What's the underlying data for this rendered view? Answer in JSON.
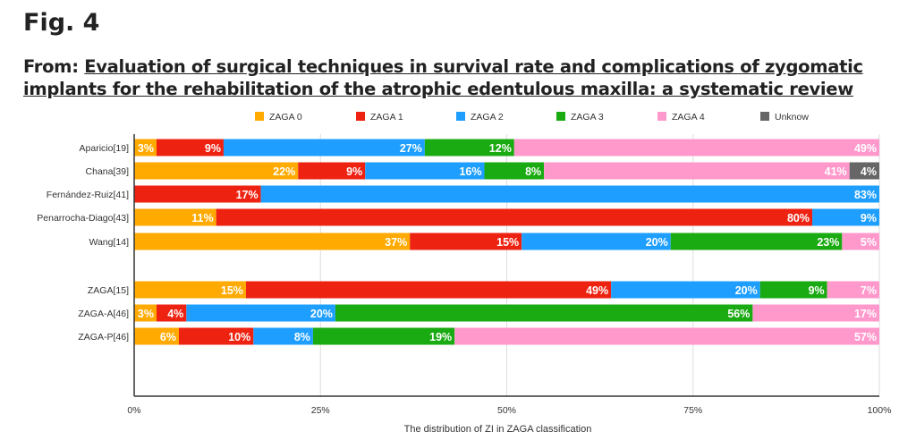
{
  "header": {
    "fig_label": "Fig. 4",
    "from_label": "From:",
    "article_title": "Evaluation of surgical techniques in survival rate and complications of zygomatic implants for the rehabilitation of the atrophic edentulous maxilla: a systematic review"
  },
  "chart_data": {
    "type": "bar",
    "orientation": "horizontal",
    "stacked": "percent",
    "title": "",
    "xlabel": "The distribution of ZI in ZAGA classification",
    "ylabel": "",
    "xlim": [
      0,
      100
    ],
    "xticks": [
      "0%",
      "25%",
      "50%",
      "75%",
      "100%"
    ],
    "grid": true,
    "legend": "top",
    "series_names": [
      "ZAGA 0",
      "ZAGA 1",
      "ZAGA 2",
      "ZAGA 3",
      "ZAGA 4",
      "Unknow"
    ],
    "colors": [
      "#FFAA00",
      "#EE2211",
      "#1E9FFF",
      "#1AAA11",
      "#FF99CC",
      "#666666"
    ],
    "rows": [
      {
        "name": "Aparicio[19]",
        "values": [
          3,
          9,
          27,
          12,
          49,
          0
        ]
      },
      {
        "name": "Chana[39]",
        "values": [
          22,
          9,
          16,
          8,
          41,
          4
        ]
      },
      {
        "name": "Fernández-Ruiz[41]",
        "values": [
          0,
          17,
          83,
          0,
          0,
          0
        ]
      },
      {
        "name": "Penarrocha-Diago[43]",
        "values": [
          11,
          80,
          9,
          0,
          0,
          0
        ]
      },
      {
        "name": "Wang[14]",
        "values": [
          37,
          15,
          20,
          23,
          5,
          0
        ]
      },
      {
        "name": "ZAGA[15]",
        "values": [
          15,
          49,
          20,
          9,
          7,
          0
        ]
      },
      {
        "name": "ZAGA-A[46]",
        "values": [
          3,
          4,
          20,
          56,
          17,
          0
        ]
      },
      {
        "name": "ZAGA-P[46]",
        "values": [
          6,
          10,
          8,
          19,
          57,
          0
        ]
      }
    ]
  }
}
